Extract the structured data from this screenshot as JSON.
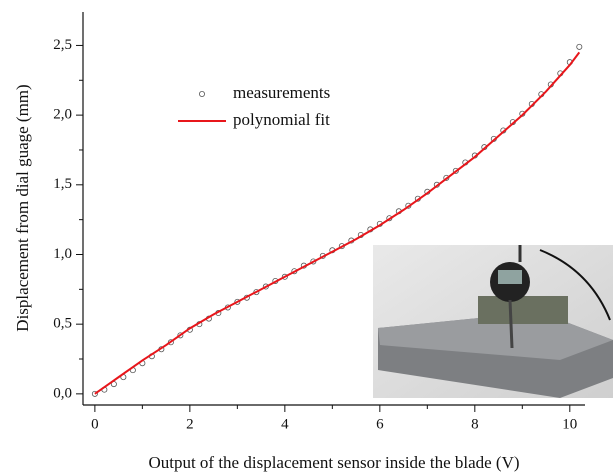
{
  "chart_data": {
    "type": "scatter",
    "x_label": "Output of the displacement sensor inside the blade (V)",
    "y_label": "Displacement from dial guage (mm)",
    "xlim": [
      -0.25,
      10.32
    ],
    "ylim": [
      -0.08,
      2.74
    ],
    "xticks": [
      0,
      2,
      4,
      6,
      8,
      10
    ],
    "xticks_minor": [
      1,
      3,
      5,
      7,
      9
    ],
    "yticks": [
      {
        "value": 0,
        "label": "0,0"
      },
      {
        "value": 0.5,
        "label": "0,5"
      },
      {
        "value": 1,
        "label": "1,0"
      },
      {
        "value": 1.5,
        "label": "1,5"
      },
      {
        "value": 2,
        "label": "2,0"
      },
      {
        "value": 2.5,
        "label": "2,5"
      }
    ],
    "yticks_minor": [
      0.25,
      0.75,
      1.25,
      1.75,
      2.25
    ],
    "legend": "upper left",
    "series": [
      {
        "name": "measurements",
        "mode": "markers",
        "color": "#555555",
        "x": [
          0,
          0.2,
          0.4,
          0.6,
          0.8,
          1.0,
          1.2,
          1.4,
          1.6,
          1.8,
          2.0,
          2.2,
          2.4,
          2.6,
          2.8,
          3.0,
          3.2,
          3.4,
          3.6,
          3.8,
          4.0,
          4.2,
          4.4,
          4.6,
          4.8,
          5.0,
          5.2,
          5.4,
          5.6,
          5.8,
          6.0,
          6.2,
          6.4,
          6.6,
          6.8,
          7.0,
          7.2,
          7.4,
          7.6,
          7.8,
          8.0,
          8.2,
          8.4,
          8.6,
          8.8,
          9.0,
          9.2,
          9.4,
          9.6,
          9.8,
          10.0,
          10.2
        ],
        "values": [
          0,
          0.03,
          0.07,
          0.12,
          0.17,
          0.22,
          0.27,
          0.32,
          0.37,
          0.42,
          0.46,
          0.5,
          0.54,
          0.58,
          0.62,
          0.66,
          0.69,
          0.73,
          0.77,
          0.81,
          0.84,
          0.88,
          0.92,
          0.95,
          0.99,
          1.03,
          1.06,
          1.1,
          1.14,
          1.18,
          1.22,
          1.26,
          1.31,
          1.35,
          1.4,
          1.45,
          1.5,
          1.55,
          1.6,
          1.66,
          1.71,
          1.77,
          1.83,
          1.89,
          1.95,
          2.01,
          2.08,
          2.15,
          2.22,
          2.3,
          2.38,
          2.49
        ]
      },
      {
        "name": "polynomial fit",
        "mode": "line",
        "color": "#e8161b",
        "x": [
          0,
          0.5,
          1,
          1.5,
          2,
          2.5,
          3,
          3.5,
          4,
          4.5,
          5,
          5.5,
          6,
          6.5,
          7,
          7.5,
          8,
          8.5,
          9,
          9.5,
          10,
          10.2
        ],
        "values": [
          0,
          0.12,
          0.24,
          0.35,
          0.47,
          0.57,
          0.66,
          0.75,
          0.84,
          0.93,
          1.02,
          1.11,
          1.21,
          1.32,
          1.44,
          1.57,
          1.7,
          1.85,
          2.0,
          2.17,
          2.36,
          2.45
        ]
      }
    ]
  }
}
